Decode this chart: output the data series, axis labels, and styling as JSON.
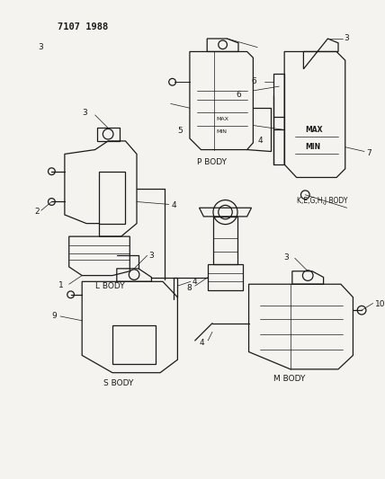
{
  "title": "7107 1988",
  "bg": "#f0eeeb",
  "lc": "#1a1a1a",
  "tc": "#1a1a1a",
  "fig_w": 4.28,
  "fig_h": 5.33,
  "dpi": 100,
  "bodies": {
    "p_body_label": "P BODY",
    "l_body_label": "L BODY",
    "k_body_label": "K,E,G,H,J BODY",
    "s_body_label": "S BODY",
    "m_body_label": "M BODY"
  },
  "notes": {
    "max": "MAX",
    "min": "MIN"
  }
}
